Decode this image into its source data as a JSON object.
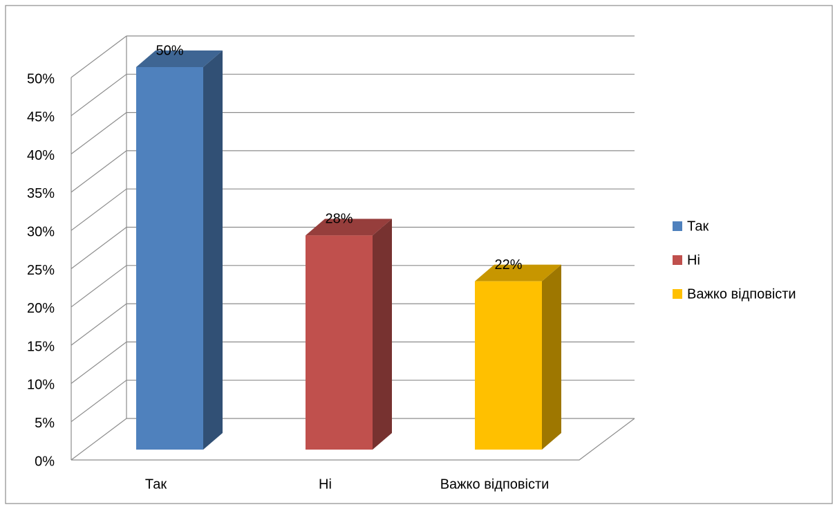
{
  "chart_data": {
    "type": "bar3d",
    "categories": [
      "Так",
      "Ні",
      "Важко відповісти"
    ],
    "values": [
      50,
      28,
      22
    ],
    "value_labels": [
      "50%",
      "28%",
      "22%"
    ],
    "colors": [
      "#4f81bd",
      "#c0504d",
      "#ffc000"
    ],
    "ylim": [
      0,
      50
    ],
    "yticks": [
      {
        "value": 0,
        "label": "0%"
      },
      {
        "value": 5,
        "label": "5%"
      },
      {
        "value": 10,
        "label": "10%"
      },
      {
        "value": 15,
        "label": "15%"
      },
      {
        "value": 20,
        "label": "20%"
      },
      {
        "value": 25,
        "label": "25%"
      },
      {
        "value": 30,
        "label": "30%"
      },
      {
        "value": 35,
        "label": "35%"
      },
      {
        "value": 40,
        "label": "40%"
      },
      {
        "value": 45,
        "label": "45%"
      },
      {
        "value": 50,
        "label": "50%"
      }
    ],
    "grid": true,
    "legend": "right"
  }
}
